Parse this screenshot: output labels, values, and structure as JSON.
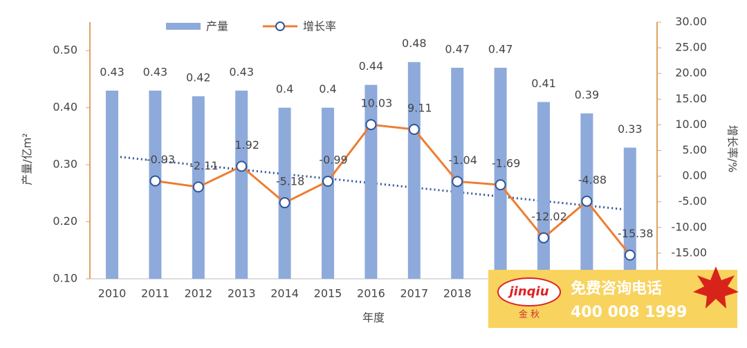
{
  "chart_data": {
    "type": "bar-line",
    "categories": [
      "2010",
      "2011",
      "2012",
      "2013",
      "2014",
      "2015",
      "2016",
      "2017",
      "2018",
      null,
      null,
      null,
      null
    ],
    "series": [
      {
        "name": "产量",
        "color": "#8eaadb",
        "type": "bar",
        "values": [
          0.43,
          0.43,
          0.42,
          0.43,
          0.4,
          0.4,
          0.44,
          0.48,
          0.47,
          0.47,
          0.41,
          0.39,
          0.33
        ]
      },
      {
        "name": "增长率",
        "color": "#ed7d31",
        "type": "line",
        "axis": "y2",
        "values": [
          null,
          -0.93,
          -2.11,
          1.92,
          -5.18,
          -0.99,
          10.03,
          9.11,
          -1.04,
          -1.69,
          -12.02,
          -4.88,
          -15.38
        ]
      }
    ],
    "trendline": {
      "axis": "y2",
      "values": [
        3.9,
        -6.6
      ],
      "color": "#2f5597"
    },
    "ylabel": "产量/亿m²",
    "y2label": "增长率/%",
    "xlabel": "年度",
    "ylim": [
      0.1,
      0.55
    ],
    "yticks": [
      {
        "value": 0.1,
        "label": "0.10"
      },
      {
        "value": 0.2,
        "label": "0.20"
      },
      {
        "value": 0.3,
        "label": "0.30"
      },
      {
        "value": 0.4,
        "label": "0.40"
      },
      {
        "value": 0.5,
        "label": "0.50"
      }
    ],
    "y2lim": [
      -20,
      30
    ],
    "y2ticks": [
      {
        "value": -15,
        "label": "-15.00"
      },
      {
        "value": -10,
        "label": "-10.00"
      },
      {
        "value": -5,
        "label": "-5.00"
      },
      {
        "value": 0,
        "label": "0.00"
      },
      {
        "value": 5,
        "label": "5.00"
      },
      {
        "value": 10,
        "label": "10.00"
      },
      {
        "value": 15,
        "label": "15.00"
      },
      {
        "value": 20,
        "label": "20.00"
      },
      {
        "value": 25,
        "label": "25.00"
      },
      {
        "value": 30,
        "label": "30.00"
      }
    ],
    "grid": false
  },
  "overlay": {
    "brand": "jinqiu",
    "brand_cn": "金 秋",
    "slogan": "免费咨询电话",
    "phone": "400 008 1999"
  }
}
